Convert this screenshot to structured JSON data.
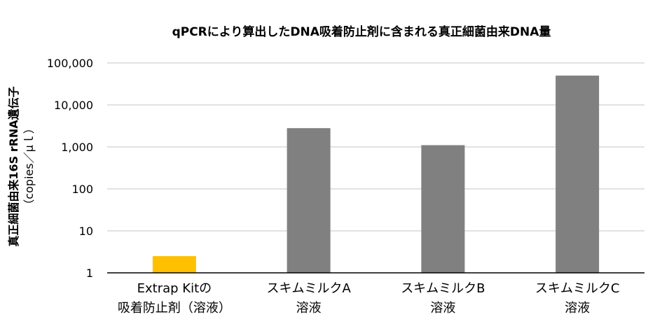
{
  "chart_data": {
    "type": "bar",
    "title": "qPCRにより算出したDNA吸着防止剤に含まれる真正細菌由来DNA量",
    "ylabel": [
      "真正細菌由来16S rRNA遺伝子",
      "（copies／μｌ）"
    ],
    "yscale": "log",
    "ylim": [
      1,
      100000
    ],
    "yticks": [
      "100,000",
      "10,000",
      "1,000",
      "100",
      "10",
      "1"
    ],
    "ytick_values": [
      100000,
      10000,
      1000,
      100,
      10,
      1
    ],
    "grid": true,
    "categories": [
      [
        "Extrap Kitの",
        "吸着防止剤（溶液）"
      ],
      [
        "スキムミルクA",
        "溶液"
      ],
      [
        "スキムミルクB",
        "溶液"
      ],
      [
        "スキムミルクC",
        "溶液"
      ]
    ],
    "values": [
      2.5,
      2800,
      1100,
      50000
    ],
    "colors": [
      "#FFC000",
      "#808080",
      "#808080",
      "#808080"
    ],
    "gridline_color": "#d9d9d9",
    "axis_color": "#000000"
  }
}
